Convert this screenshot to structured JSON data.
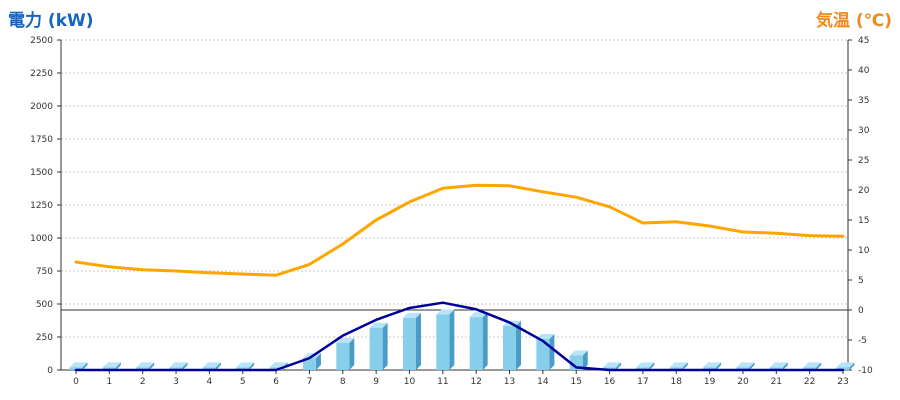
{
  "chart_data": {
    "type": "bar+line",
    "left_axis_title": "電力 (kW)",
    "right_axis_title": "気温 (℃)",
    "x": [
      0,
      1,
      2,
      3,
      4,
      5,
      6,
      7,
      8,
      9,
      10,
      11,
      12,
      13,
      14,
      15,
      16,
      17,
      18,
      19,
      20,
      21,
      22,
      23
    ],
    "left_ticks": [
      0,
      250,
      500,
      750,
      1000,
      1250,
      1500,
      1750,
      2000,
      2250,
      2500
    ],
    "right_ticks": [
      -10,
      -5,
      0,
      5,
      10,
      15,
      20,
      25,
      30,
      35,
      40,
      45
    ],
    "ylim_left": [
      0,
      2500
    ],
    "ylim_right": [
      -10,
      45
    ],
    "grid": true,
    "series": [
      {
        "kind": "bar",
        "axis": "left",
        "color": "#87ceeb",
        "values": [
          20,
          20,
          20,
          20,
          20,
          20,
          20,
          90,
          205,
          320,
          395,
          420,
          400,
          335,
          235,
          110,
          20,
          20,
          20,
          20,
          20,
          20,
          20,
          20
        ]
      },
      {
        "kind": "line",
        "axis": "left",
        "color": "#000099",
        "values": [
          0,
          0,
          0,
          0,
          0,
          0,
          0,
          90,
          260,
          380,
          470,
          510,
          460,
          360,
          220,
          20,
          0,
          0,
          0,
          0,
          0,
          0,
          0,
          0
        ]
      },
      {
        "kind": "line",
        "axis": "right",
        "color": "#ffa500",
        "values": [
          8.0,
          7.2,
          6.7,
          6.5,
          6.2,
          6.0,
          5.8,
          7.6,
          11.0,
          15.0,
          18.0,
          20.3,
          20.8,
          20.7,
          19.7,
          18.8,
          17.2,
          14.5,
          14.7,
          14.0,
          13.0,
          12.8,
          12.4,
          12.3
        ]
      }
    ]
  }
}
